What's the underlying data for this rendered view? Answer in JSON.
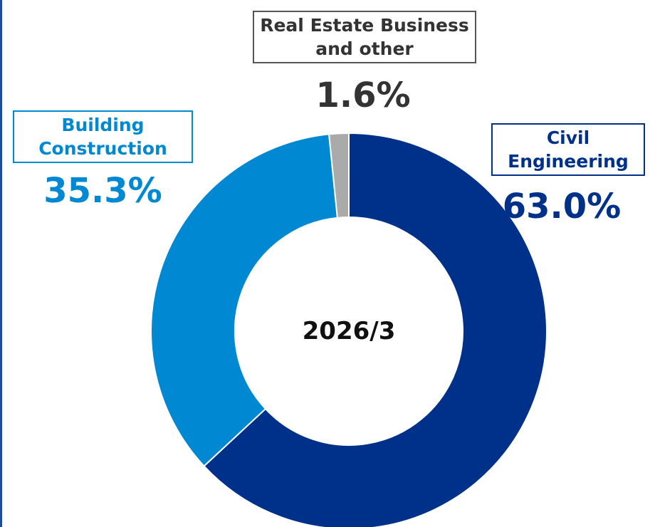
{
  "chart_data": {
    "type": "donut",
    "center_label": "2026/3",
    "categories": [
      "Civil Engineering",
      "Building Construction",
      "Real Estate Business and other"
    ],
    "values": [
      63.0,
      35.3,
      1.6
    ],
    "value_labels": [
      "63.0%",
      "35.3%",
      "1.6%"
    ],
    "colors": [
      "#00318a",
      "#0088d2",
      "#aaaaaa"
    ],
    "label_colors": [
      "#00318a",
      "#0088d2",
      "#333333"
    ]
  }
}
